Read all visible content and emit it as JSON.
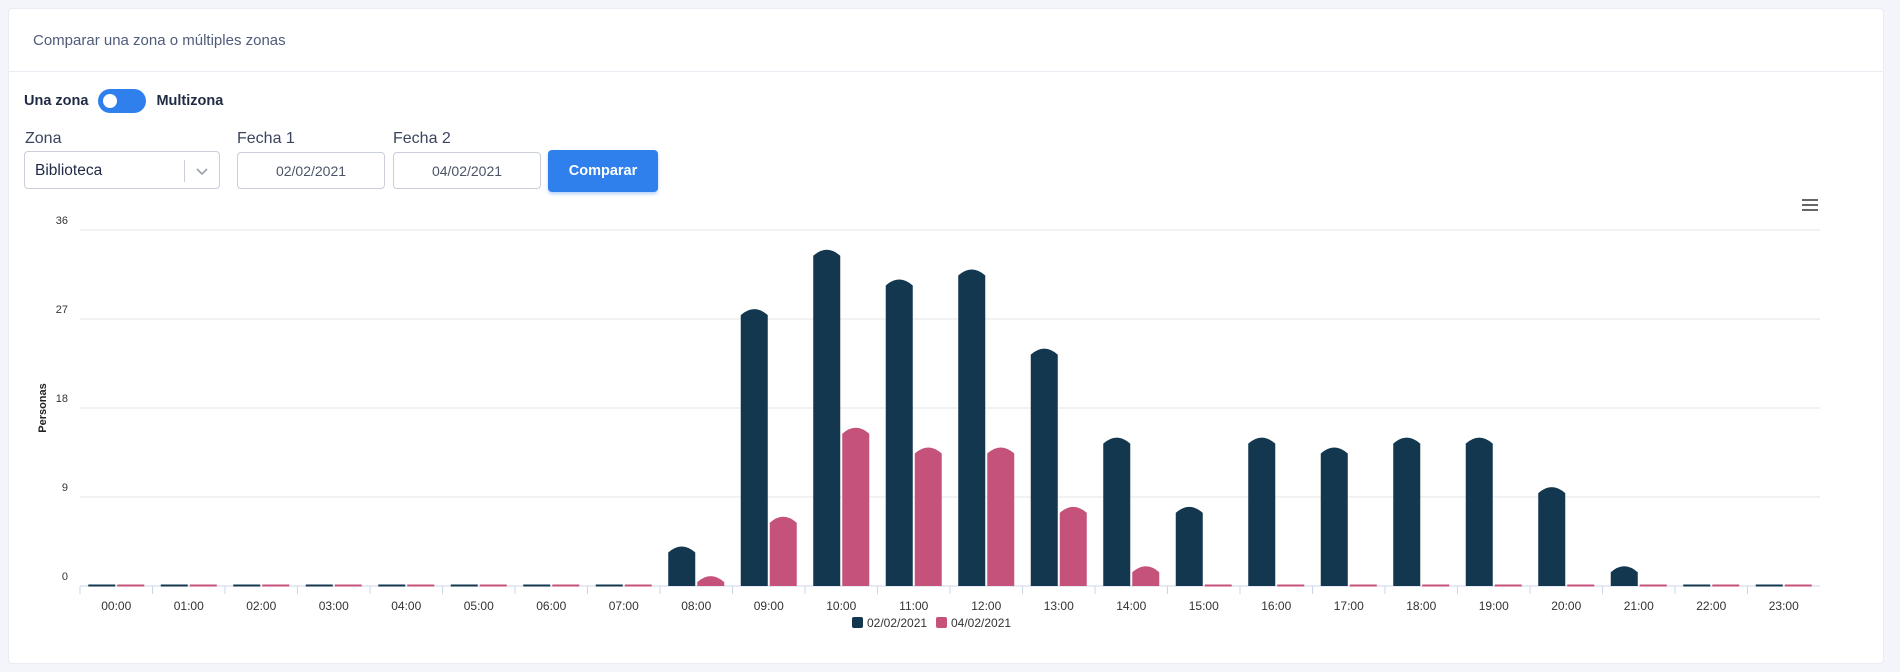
{
  "header": {
    "title": "Comparar una zona o múltiples zonas"
  },
  "mode_toggle": {
    "left_label": "Una zona",
    "right_label": "Multizona",
    "state": "multizona"
  },
  "form": {
    "zona_label": "Zona",
    "zona_value": "Biblioteca",
    "fecha1_label": "Fecha 1",
    "fecha1_value": "02/02/2021",
    "fecha2_label": "Fecha 2",
    "fecha2_value": "04/02/2021",
    "compare_label": "Comparar"
  },
  "icons": {
    "menu": "hamburger-menu-icon",
    "dropdown": "chevron-down-icon"
  },
  "colors": {
    "accent": "#2f80ed",
    "series1": "#12374f",
    "series2": "#c5527a"
  },
  "chart_data": {
    "type": "bar",
    "ylabel": "Personas",
    "xlabel": "",
    "ylim": [
      0,
      36
    ],
    "yticks": [
      0,
      9,
      18,
      27,
      36
    ],
    "grid": true,
    "legend_position": "bottom",
    "categories": [
      "00:00",
      "01:00",
      "02:00",
      "03:00",
      "04:00",
      "05:00",
      "06:00",
      "07:00",
      "08:00",
      "09:00",
      "10:00",
      "11:00",
      "12:00",
      "13:00",
      "14:00",
      "15:00",
      "16:00",
      "17:00",
      "18:00",
      "19:00",
      "20:00",
      "21:00",
      "22:00",
      "23:00"
    ],
    "series": [
      {
        "name": "02/02/2021",
        "color": "#12374f",
        "values": [
          0,
          0,
          0,
          0,
          0,
          0,
          0,
          0,
          4,
          28,
          34,
          31,
          32,
          24,
          15,
          8,
          15,
          14,
          15,
          15,
          10,
          2,
          0,
          0
        ]
      },
      {
        "name": "04/02/2021",
        "color": "#c5527a",
        "values": [
          0,
          0,
          0,
          0,
          0,
          0,
          0,
          0,
          1,
          7,
          16,
          14,
          14,
          8,
          2,
          0,
          0,
          0,
          0,
          0,
          0,
          0,
          0,
          0
        ]
      }
    ]
  }
}
